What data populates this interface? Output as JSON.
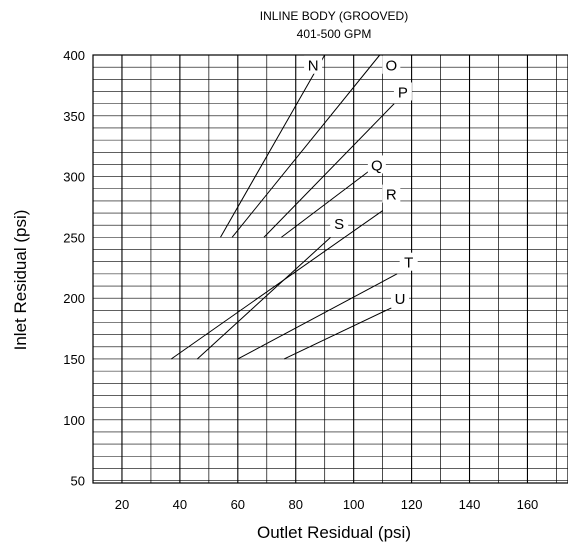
{
  "chart_data": {
    "type": "line",
    "title": "INLINE BODY (GROOVED)",
    "subtitle": "401-500 GPM",
    "xlabel": "Outlet Residual (psi)",
    "ylabel": "Inlet Residual (psi)",
    "xlim": [
      10,
      174
    ],
    "ylim": [
      48,
      400
    ],
    "x_ticks": [
      20,
      40,
      60,
      80,
      100,
      120,
      140,
      160
    ],
    "y_ticks": [
      50,
      100,
      150,
      200,
      250,
      300,
      350,
      400
    ],
    "grid": true,
    "series": [
      {
        "name": "N",
        "x": [
          54,
          90
        ],
        "y": [
          250,
          400
        ],
        "label_at": [
          86,
          392
        ]
      },
      {
        "name": "O",
        "x": [
          58,
          109
        ],
        "y": [
          250,
          400
        ],
        "label_at": [
          113,
          392
        ]
      },
      {
        "name": "P",
        "x": [
          69,
          114
        ],
        "y": [
          250,
          360
        ],
        "label_at": [
          117,
          370
        ]
      },
      {
        "name": "Q",
        "x": [
          75,
          105
        ],
        "y": [
          250,
          304
        ],
        "label_at": [
          108,
          310
        ]
      },
      {
        "name": "R",
        "x": [
          37,
          110
        ],
        "y": [
          150,
          272
        ],
        "label_at": [
          113,
          286
        ]
      },
      {
        "name": "S",
        "x": [
          46,
          92
        ],
        "y": [
          150,
          250
        ],
        "label_at": [
          95,
          262
        ]
      },
      {
        "name": "T",
        "x": [
          60,
          115
        ],
        "y": [
          150,
          220
        ],
        "label_at": [
          119,
          230
        ]
      },
      {
        "name": "U",
        "x": [
          76,
          113
        ],
        "y": [
          150,
          192
        ],
        "label_at": [
          116,
          200
        ]
      }
    ]
  }
}
